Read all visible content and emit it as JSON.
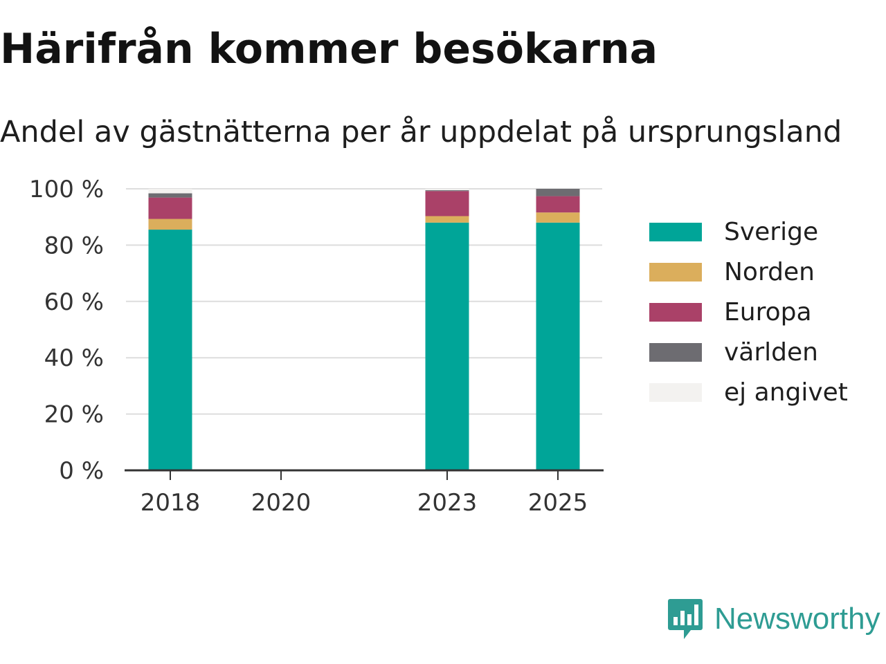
{
  "title": "Härifrån kommer besökarna",
  "subtitle": "Andel av gästnätterna per år uppdelat på ursprungsland",
  "logo": {
    "text": "Newsworthy",
    "color": "#2e9c93"
  },
  "chart_data": {
    "type": "bar",
    "stacked": true,
    "x": [
      2018,
      2023,
      2025
    ],
    "x_ticks": [
      2018,
      2020,
      2023,
      2025
    ],
    "x_range": [
      2017.2,
      2025.8
    ],
    "ylim": [
      0,
      100
    ],
    "y_ticks": [
      0,
      20,
      40,
      60,
      80,
      100
    ],
    "y_tick_labels": [
      "0 %",
      "20 %",
      "40 %",
      "60 %",
      "80 %",
      "100 %"
    ],
    "grid": true,
    "legend_position": "right",
    "series": [
      {
        "name": "Sverige",
        "color": "#00a598",
        "values": [
          85.5,
          88,
          88
        ]
      },
      {
        "name": "Norden",
        "color": "#dbae5c",
        "values": [
          3.8,
          2.3,
          3.6
        ]
      },
      {
        "name": "Europa",
        "color": "#aa4168",
        "values": [
          7.6,
          8.9,
          5.8
        ]
      },
      {
        "name": "världen",
        "color": "#6d6c71",
        "values": [
          1.5,
          0.3,
          2.6
        ]
      },
      {
        "name": "ej angivet",
        "color": "#f3f2f0",
        "values": [
          1.6,
          0.5,
          0
        ]
      }
    ]
  }
}
